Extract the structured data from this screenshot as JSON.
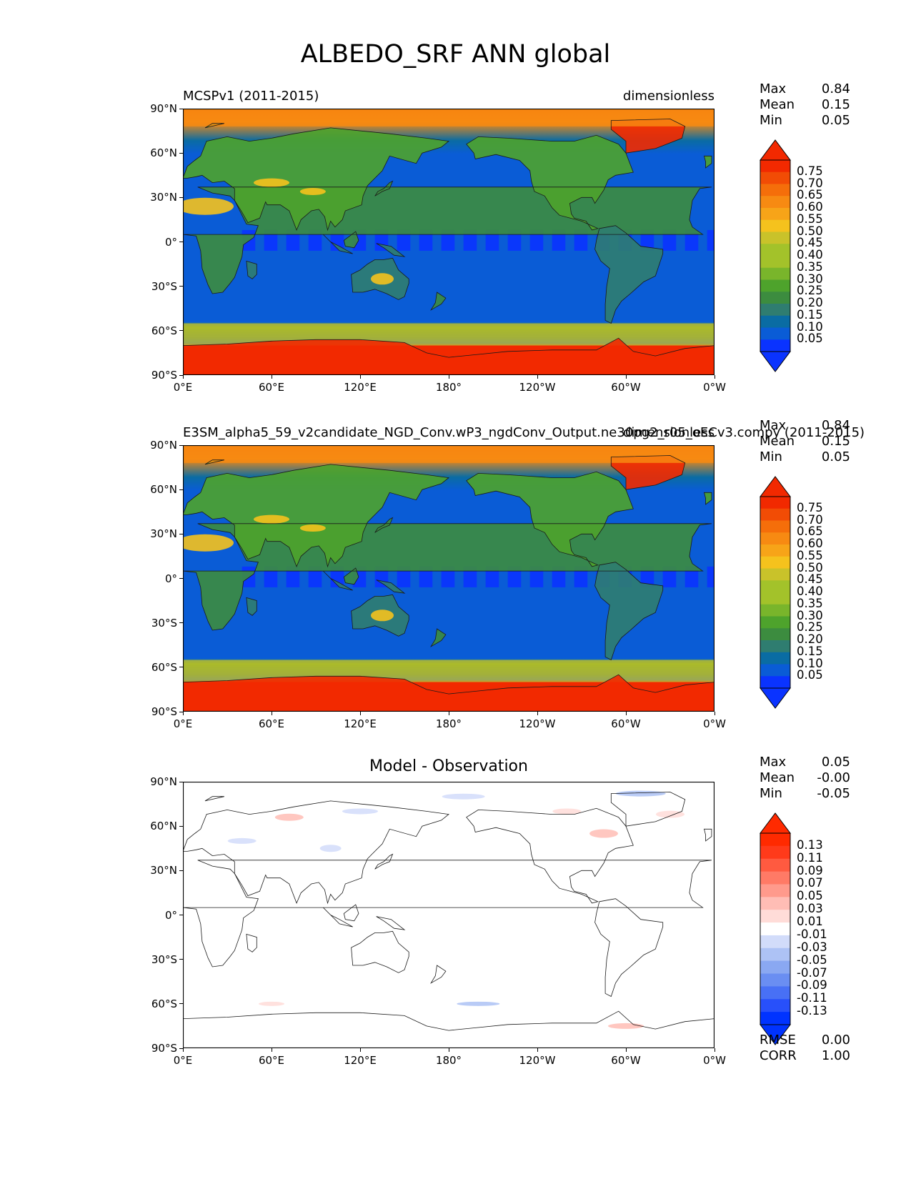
{
  "page_title": "ALBEDO_SRF ANN global",
  "colors": {
    "sequential_cmap": [
      "#0a33ff",
      "#0a5cd6",
      "#0a6ca3",
      "#2f7d70",
      "#3c8c3f",
      "#4ea32c",
      "#79b52b",
      "#a3c22a",
      "#c9c22a",
      "#f5c21d",
      "#f7a418",
      "#f78a12",
      "#f56e0a",
      "#f24c05",
      "#f22900"
    ],
    "diverging_cmap": [
      "#0033ff",
      "#2850fa",
      "#4870f5",
      "#6a8ef2",
      "#8aa8f2",
      "#adc2f5",
      "#d2dcfa",
      "#ffffff",
      "#ffdcd8",
      "#ffbdb5",
      "#ff9a8c",
      "#ff7a66",
      "#ff5a40",
      "#ff3a1a",
      "#ff2a00"
    ]
  },
  "chart_data": [
    {
      "type": "heatmap",
      "projection": "plate carree map",
      "panel_left_title": "MCSPv1 (2011-2015)",
      "panel_right_title": "dimensionless",
      "xticks": [
        "0°E",
        "60°E",
        "120°E",
        "180°",
        "120°W",
        "60°W",
        "0°W"
      ],
      "yticks": [
        "90°N",
        "60°N",
        "30°N",
        "0°",
        "30°S",
        "60°S",
        "90°S"
      ],
      "stats": [
        {
          "label": "Max",
          "value": "0.84"
        },
        {
          "label": "Mean",
          "value": "0.15"
        },
        {
          "label": "Min",
          "value": "0.05"
        }
      ],
      "colorbar": {
        "labels": [
          "0.75",
          "0.70",
          "0.65",
          "0.60",
          "0.55",
          "0.50",
          "0.45",
          "0.40",
          "0.35",
          "0.30",
          "0.25",
          "0.20",
          "0.15",
          "0.10",
          "0.05"
        ],
        "cmap": "sequential_cmap",
        "extend": "both"
      }
    },
    {
      "type": "heatmap",
      "projection": "plate carree map",
      "panel_left_title": "E3SM_alpha5_59_v2candidate_NGD_Conv.wP3_ngdConv_Output.ne30pg2_r05_oECv3.compy (2011-2015)",
      "panel_right_title": "dimensionless",
      "xticks": [
        "0°E",
        "60°E",
        "120°E",
        "180°",
        "120°W",
        "60°W",
        "0°W"
      ],
      "yticks": [
        "90°N",
        "60°N",
        "30°N",
        "0°",
        "30°S",
        "60°S",
        "90°S"
      ],
      "stats": [
        {
          "label": "Max",
          "value": "0.84"
        },
        {
          "label": "Mean",
          "value": "0.15"
        },
        {
          "label": "Min",
          "value": "0.05"
        }
      ],
      "colorbar": {
        "labels": [
          "0.75",
          "0.70",
          "0.65",
          "0.60",
          "0.55",
          "0.50",
          "0.45",
          "0.40",
          "0.35",
          "0.30",
          "0.25",
          "0.20",
          "0.15",
          "0.10",
          "0.05"
        ],
        "cmap": "sequential_cmap",
        "extend": "both"
      }
    },
    {
      "type": "heatmap",
      "projection": "plate carree map",
      "panel_center_title": "Model - Observation",
      "xticks": [
        "0°E",
        "60°E",
        "120°E",
        "180°",
        "120°W",
        "60°W",
        "0°W"
      ],
      "yticks": [
        "90°N",
        "60°N",
        "30°N",
        "0°",
        "30°S",
        "60°S",
        "90°S"
      ],
      "stats": [
        {
          "label": "Max",
          "value": "0.05"
        },
        {
          "label": "Mean",
          "value": "-0.00"
        },
        {
          "label": "Min",
          "value": "-0.05"
        }
      ],
      "colorbar": {
        "labels": [
          "0.13",
          "0.11",
          "0.09",
          "0.07",
          "0.05",
          "0.03",
          "0.01",
          "-0.01",
          "-0.03",
          "-0.05",
          "-0.07",
          "-0.09",
          "-0.11",
          "-0.13"
        ],
        "cmap": "diverging_cmap",
        "extend": "both"
      },
      "metrics": [
        {
          "label": "RMSE",
          "value": "0.00"
        },
        {
          "label": "CORR",
          "value": "1.00"
        }
      ]
    }
  ]
}
